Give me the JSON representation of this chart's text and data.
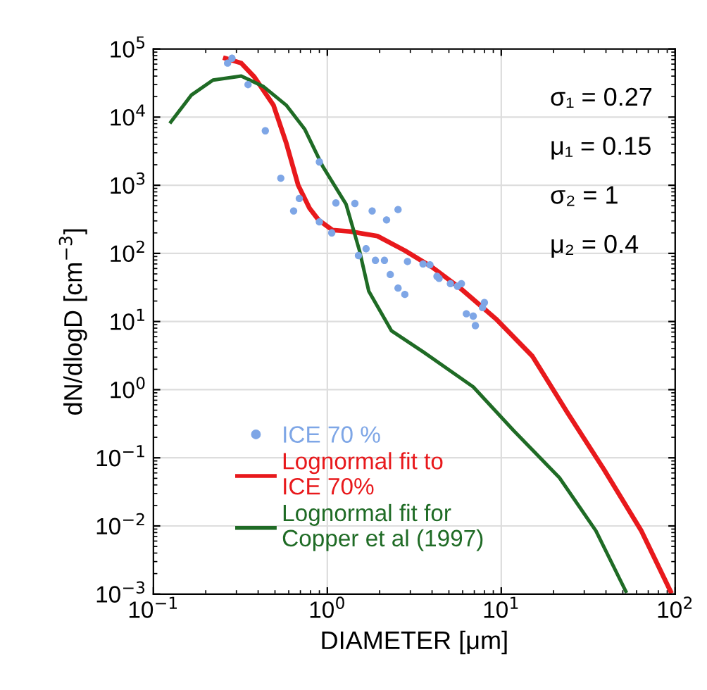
{
  "chart_data": {
    "type": "line",
    "xlabel": "DIAMETER [μm]",
    "ylabel": "dN/dlogD [cm$^{−3}$]",
    "log": "xy",
    "grid": true,
    "legend": "bottom left",
    "xlim": [
      0.1,
      100
    ],
    "ylim": [
      0.001,
      100000
    ],
    "xticks": [
      {
        "value": 0.1,
        "label": "10$^{−1}$"
      },
      {
        "value": 1,
        "label": "10$^{0}$"
      },
      {
        "value": 10,
        "label": "10$^{1}$"
      },
      {
        "value": 100,
        "label": "10$^{2}$"
      }
    ],
    "yticks": [
      {
        "value": 0.001,
        "label": "10$^{−3}$"
      },
      {
        "value": 0.01,
        "label": "10$^{−2}$"
      },
      {
        "value": 0.1,
        "label": "10$^{−1}$"
      },
      {
        "value": 1,
        "label": "10$^{0}$"
      },
      {
        "value": 10,
        "label": "10$^{1}$"
      },
      {
        "value": 100,
        "label": "10$^{2}$"
      },
      {
        "value": 1000,
        "label": "10$^{3}$"
      },
      {
        "value": 10000,
        "label": "10$^{4}$"
      },
      {
        "value": 100000,
        "label": "10$^{5}$"
      }
    ],
    "annotations": [
      "σ₁ = 0.27",
      "μ₁ = 0.15",
      "σ₂ = 1",
      "μ₂ = 0.4"
    ],
    "series": [
      {
        "name": "ICE 70 %",
        "type": "scatter",
        "marker": "circle",
        "color": "#7ea6e6",
        "x": [
          0.267,
          0.283,
          0.35,
          0.44,
          0.54,
          0.64,
          0.69,
          0.9,
          0.9,
          1.12,
          1.06,
          1.44,
          1.51,
          1.67,
          1.81,
          1.89,
          2.13,
          2.3,
          2.19,
          2.55,
          2.55,
          2.79,
          2.89,
          3.55,
          3.89,
          4.27,
          4.39,
          5.1,
          5.6,
          5.9,
          6.3,
          6.9,
          7.1,
          7.8,
          8.0
        ],
        "values": [
          62000,
          73000,
          30000,
          6300,
          1270,
          420,
          640,
          2200,
          290,
          550,
          200,
          540,
          93,
          117,
          420,
          79,
          79,
          49,
          310,
          440,
          31,
          25,
          76,
          70,
          68,
          46,
          43,
          36,
          33,
          36,
          13,
          12,
          8.7,
          16,
          19
        ]
      },
      {
        "name": "Lognormal fit to\nICE 70%",
        "line_style": "solid",
        "color": "#e8191c",
        "x": [
          0.259,
          0.32,
          0.38,
          0.49,
          0.58,
          0.68,
          0.79,
          0.89,
          1.07,
          1.35,
          1.94,
          2.79,
          4.0,
          5.8,
          9.3,
          15.1,
          24,
          39,
          64,
          94
        ],
        "values": [
          73000,
          62000,
          39000,
          15000,
          4200,
          1000,
          460,
          310,
          220,
          210,
          180,
          110,
          63,
          31,
          11,
          3.1,
          0.46,
          0.067,
          0.0084,
          0.0011
        ]
      },
      {
        "name": "Lognormal fit for\nCopper et al (1997)",
        "line_style": "solid",
        "color": "#1f6b25",
        "x": [
          0.126,
          0.165,
          0.22,
          0.32,
          0.43,
          0.58,
          0.74,
          0.94,
          1.28,
          1.53,
          1.73,
          2.34,
          3.55,
          6.9,
          11.8,
          21.6,
          35,
          52
        ],
        "values": [
          8500,
          21000,
          35000,
          40000,
          28000,
          15000,
          6700,
          1900,
          530,
          110,
          28,
          7.3,
          3.6,
          1.1,
          0.25,
          0.051,
          0.0085,
          0.0011
        ]
      }
    ]
  }
}
